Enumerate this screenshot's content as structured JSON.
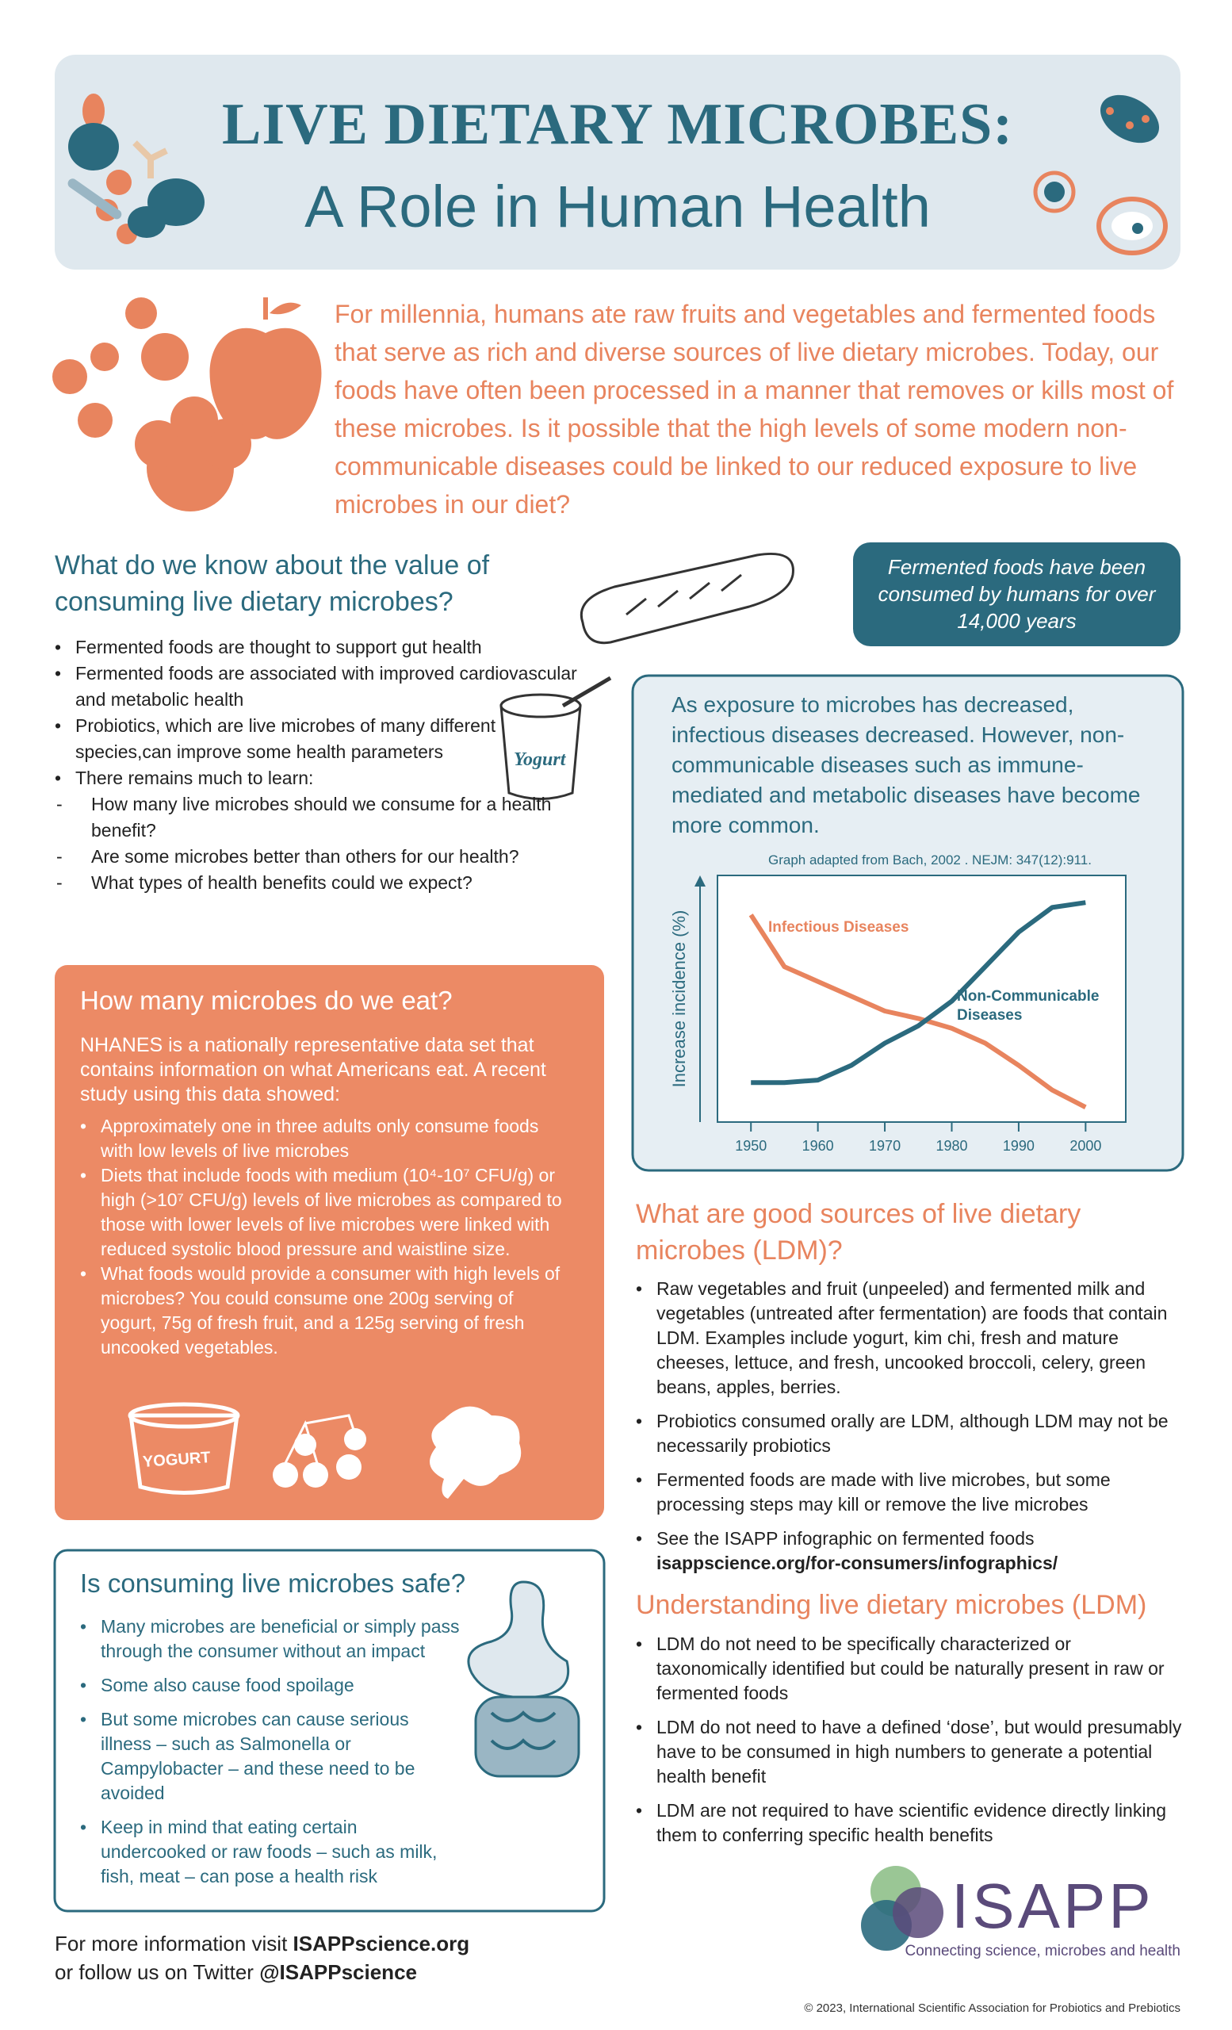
{
  "header": {
    "title": "LIVE DIETARY MICROBES:",
    "subtitle": "A Role in Human Health"
  },
  "intro": "For millennia, humans ate raw fruits and vegetables and fermented foods that serve as rich and diverse sources of live dietary microbes. Today, our foods have often been processed in a manner that removes or kills most of these microbes. Is it possible that the high levels of some modern non-communicable diseases could be linked to our reduced exposure to live microbes in our diet?",
  "know": {
    "heading": "What do we know about the value of consuming live dietary microbes?",
    "bullets": [
      "Fermented foods are thought to support gut health",
      "Fermented foods are associated with improved cardiovascular and metabolic health",
      "Probiotics, which are live microbes of many different species,can improve some health parameters",
      "There remains much to learn:"
    ],
    "sub_bullets": [
      "How many live microbes should we consume for a health benefit?",
      "Are some microbes better than others for our health?",
      "What types of health benefits could we expect?"
    ],
    "icon_label": "Yogurt"
  },
  "callout": "Fermented foods have been consumed by humans for over 14,000 years",
  "chart_panel": {
    "text": "As exposure to microbes has decreased, infectious diseases decreased. However, non-communicable diseases such as immune-mediated and metabolic diseases have become more common."
  },
  "chart_data": {
    "type": "line",
    "annotation": "Graph adapted from Bach, 2002 . NEJM: 347(12):911.",
    "y_label": "Increase incidence (%)",
    "x": [
      1950,
      1955,
      1960,
      1965,
      1970,
      1975,
      1980,
      1985,
      1990,
      1995,
      2000
    ],
    "series": [
      {
        "name": "Infectious Diseases",
        "color": "#e8845e",
        "values": [
          84,
          63,
          57,
          51,
          45,
          42,
          38,
          32,
          23,
          13,
          6
        ]
      },
      {
        "name": "Non-Communicable Diseases",
        "color": "#2b6a7e",
        "values": [
          16,
          16,
          17,
          23,
          32,
          39,
          49,
          63,
          77,
          87,
          89
        ]
      }
    ],
    "xlim": [
      1945,
      2006
    ],
    "xticks": [
      1950,
      1960,
      1970,
      1980,
      1990,
      2000
    ],
    "ylim": [
      0,
      100
    ],
    "grid": false
  },
  "eat": {
    "heading": "How many microbes do we eat?",
    "intro": "NHANES is a nationally representative data set that contains information on what Americans eat. A recent study using this data showed:",
    "bullets": [
      "Approximately one in three adults only consume foods with low levels of live microbes",
      "Diets that include foods with medium (10⁴-10⁷ CFU/g) or high (>10⁷ CFU/g) levels of live microbes as compared to those with lower levels of live microbes were linked with reduced systolic blood pressure and waistline size.",
      "What foods would provide a consumer with high levels of microbes? You could consume one 200g serving of yogurt, 75g of fresh fruit, and a 125g serving of fresh uncooked vegetables."
    ],
    "icon_label": "YOGURT"
  },
  "safe": {
    "heading": "Is consuming live microbes safe?",
    "bullets": [
      "Many microbes are beneficial or simply pass through the consumer without an impact",
      "Some also cause food spoilage",
      "But some microbes can cause serious illness – such as Salmonella or Campylobacter – and these need to be avoided",
      "Keep in mind that eating certain undercooked or raw foods – such as milk, fish, meat – can pose a health risk"
    ]
  },
  "sources": {
    "heading": "What are good sources of live dietary microbes (LDM)?",
    "bullets": [
      "Raw vegetables and fruit (unpeeled) and fermented milk and vegetables (untreated after fermentation) are foods that contain LDM. Examples include yogurt, kim chi, fresh and mature cheeses, lettuce, and fresh, uncooked broccoli, celery, green beans, apples, berries.",
      "Probiotics consumed orally are LDM, although LDM may not be necessarily probiotics",
      "Fermented foods are made with live microbes, but some processing steps may kill or remove the live microbes",
      "See the ISAPP infographic on fermented foods"
    ],
    "link": "isappscience.org/for-consumers/infographics/"
  },
  "understanding": {
    "heading": "Understanding live dietary microbes (LDM)",
    "bullets": [
      "LDM do not need to be specifically characterized or taxonomically identified but could be naturally present in raw or fermented foods",
      "LDM do not need to have a defined ‘dose’, but would presumably have to be consumed in high numbers to generate a potential health benefit",
      "LDM are not required to have scientific evidence directly linking them to conferring specific health benefits"
    ]
  },
  "footer": {
    "line1_prefix": "For more  information visit",
    "line1_link": "ISAPPscience.org",
    "line2_prefix": "or follow us on Twitter",
    "line2_link": "@ISAPPscience"
  },
  "logo": {
    "name": "ISAPP",
    "tagline": "Connecting science, microbes and health"
  },
  "copyright": "© 2023, International Scientific Association for Probiotics and Prebiotics"
}
